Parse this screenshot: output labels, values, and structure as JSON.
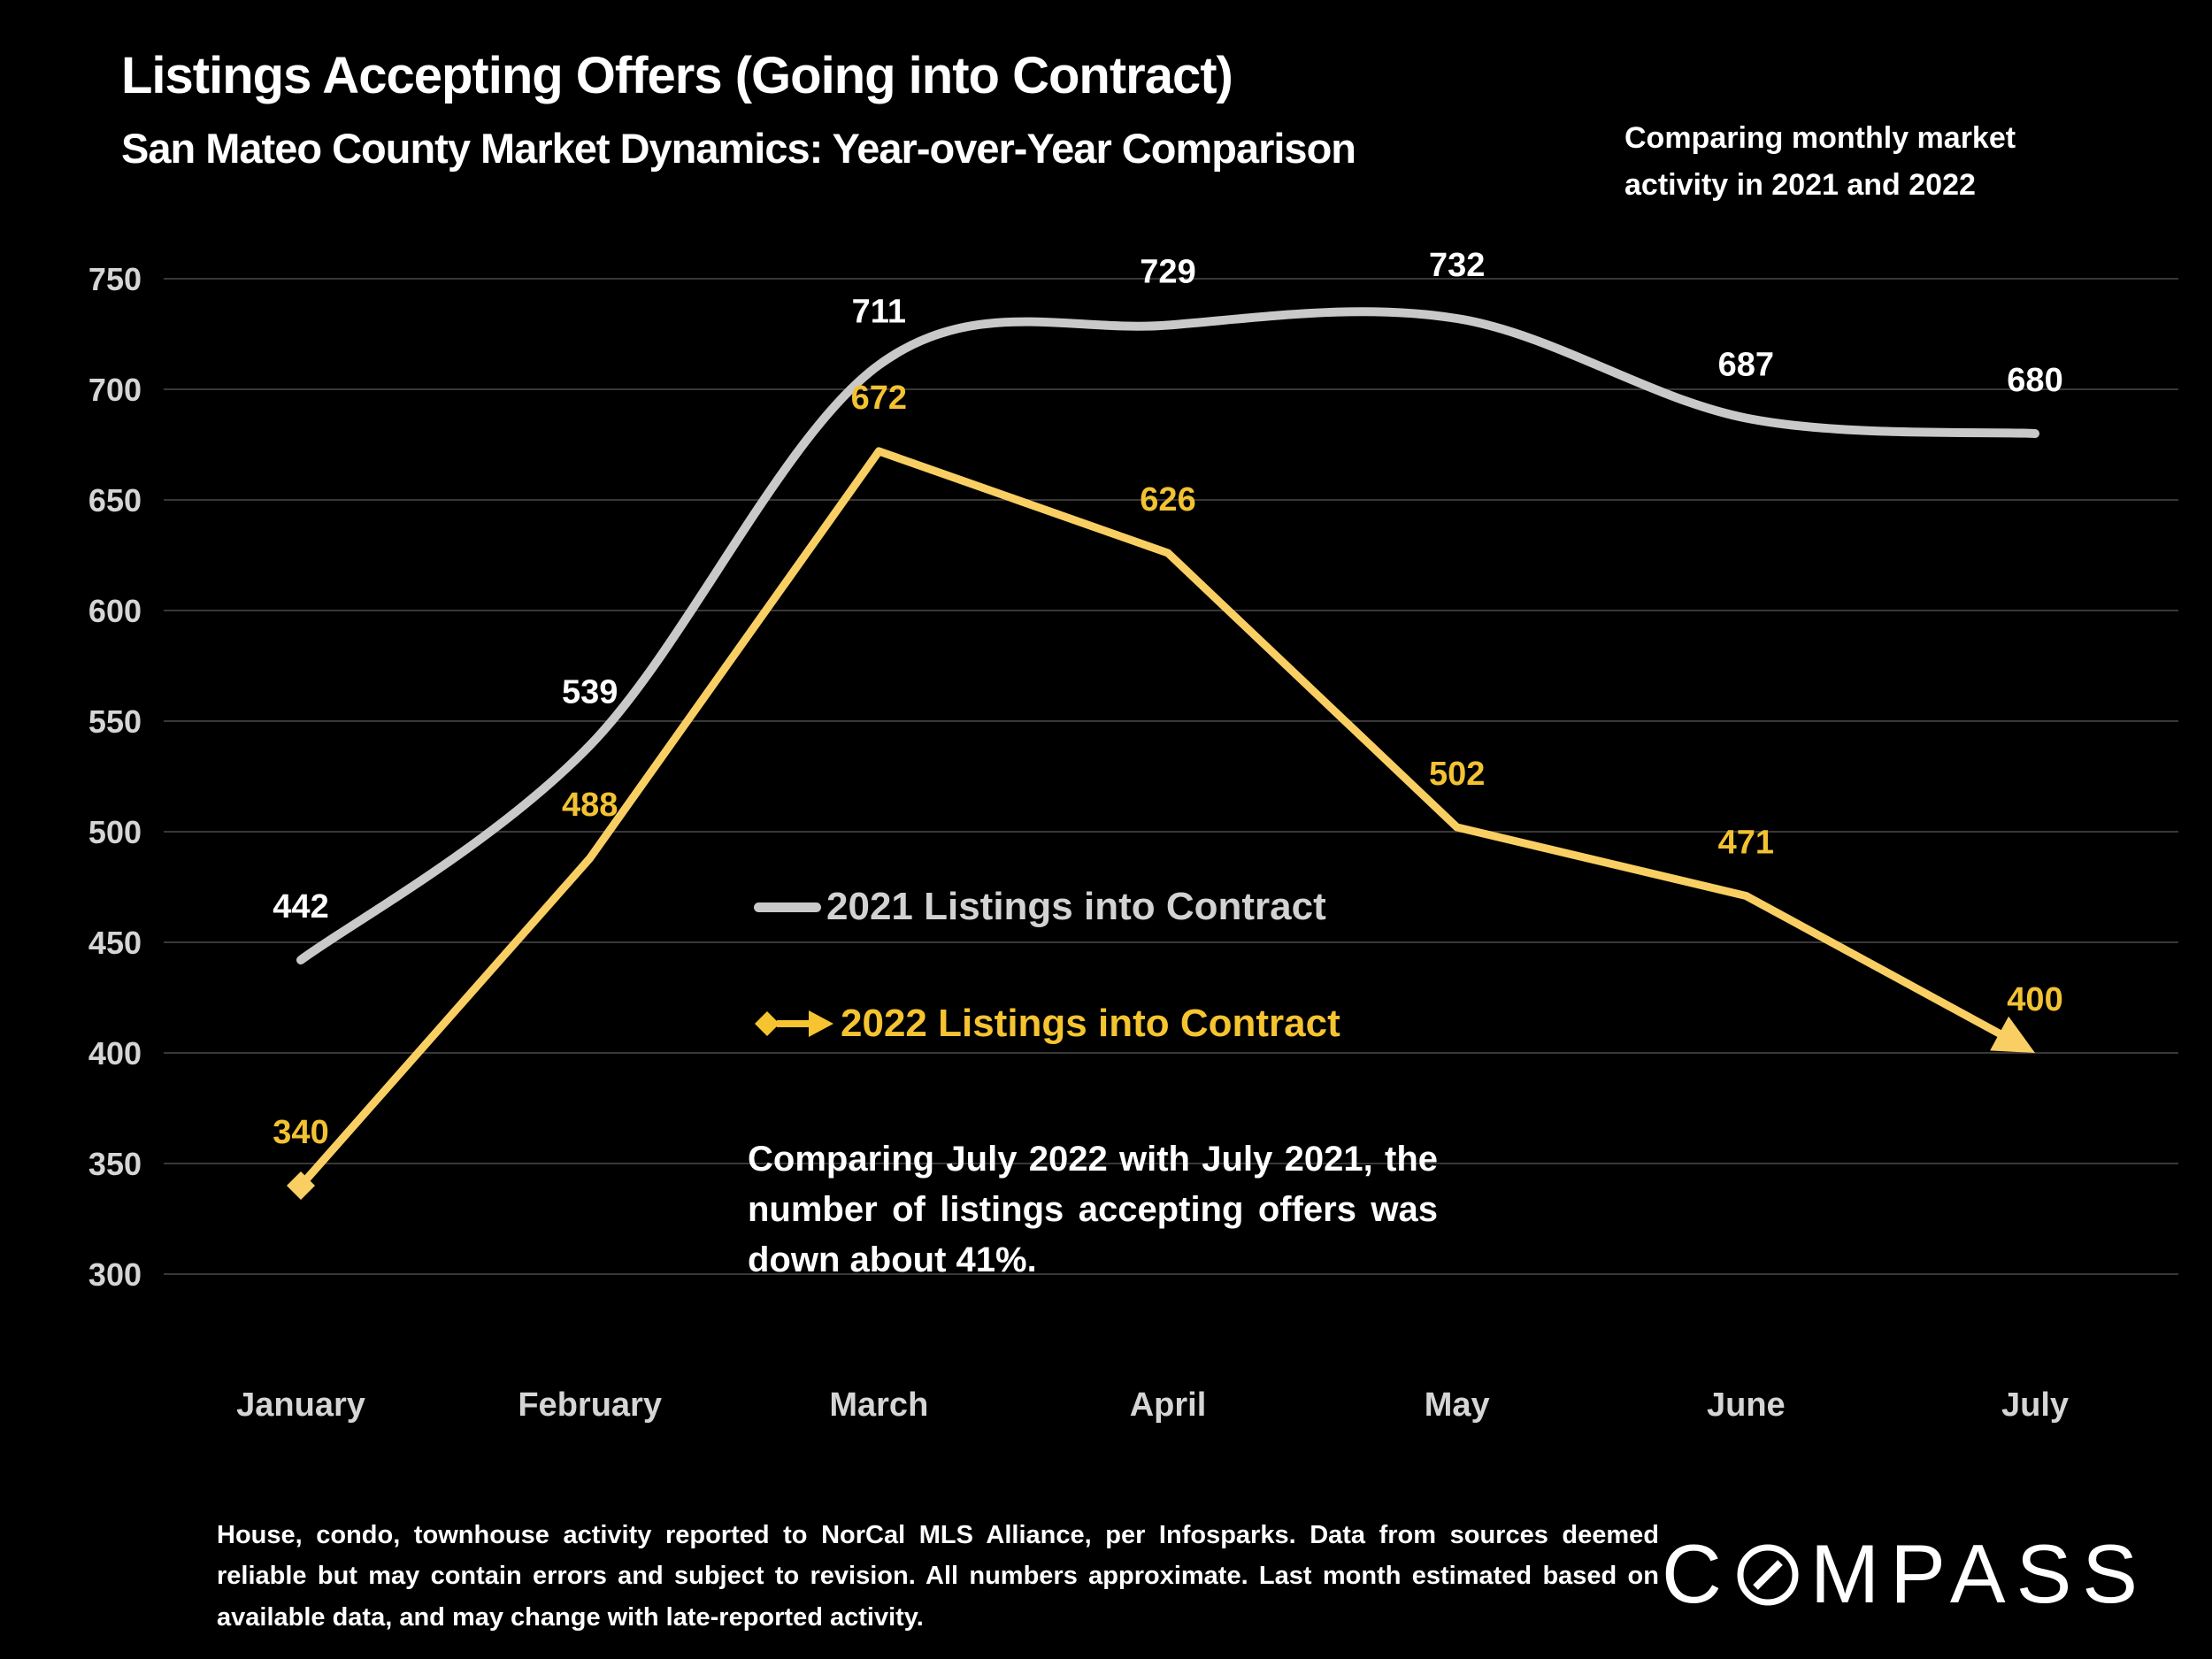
{
  "header": {
    "title": "Listings Accepting Offers (Going into Contract)",
    "subtitle": "San Mateo County Market Dynamics: Year-over-Year Comparison",
    "note_lines": [
      "Comparing monthly market",
      "activity in 2021 and 2022"
    ]
  },
  "chart_data": {
    "type": "line",
    "title": "Listings Accepting Offers (Going into Contract)",
    "categories": [
      "January",
      "February",
      "March",
      "April",
      "May",
      "June",
      "July"
    ],
    "series": [
      {
        "name": "2021 Listings into Contract",
        "values": [
          442,
          539,
          711,
          729,
          732,
          687,
          680
        ],
        "color": "#C9C9C9",
        "label_color": "#FFFFFF",
        "line_style": "smooth",
        "markers": "none"
      },
      {
        "name": "2022 Listings into Contract",
        "values": [
          340,
          488,
          672,
          626,
          502,
          471,
          400
        ],
        "color": "#F9CF63",
        "label_color": "#F2C233",
        "line_style": "straight",
        "markers": "diamond-start, arrow-end"
      }
    ],
    "ylim": [
      300,
      750
    ],
    "ytick_step": 50,
    "grid": true,
    "legend_position": "inside-center-left",
    "data_labels": true
  },
  "annotation": {
    "text": "Comparing July 2022 with July 2021, the number of listings accepting offers was down about 41%."
  },
  "footer": {
    "disclaimer": "House, condo, townhouse activity reported to NorCal MLS Alliance, per Infosparks. Data from sources deemed reliable but may contain errors and subject to revision. All numbers approximate. Last month estimated based on available data, and may change with late-reported activity.",
    "brand": "COMPASS"
  },
  "colors": {
    "background": "#000000",
    "grid": "#383838",
    "axis_text": "#D5D5D5",
    "series_2021": "#C9C9C9",
    "series_2022": "#F9CF63"
  }
}
